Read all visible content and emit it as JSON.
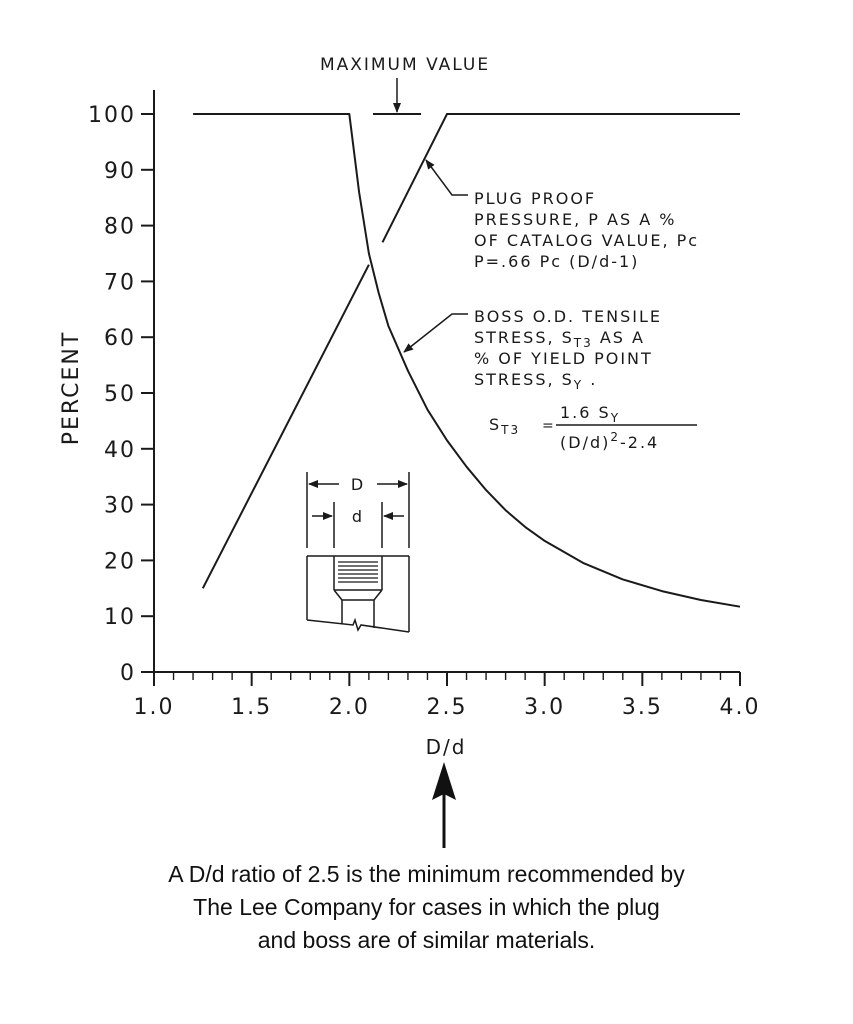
{
  "chart_data": {
    "type": "line",
    "xlabel": "D/d",
    "ylabel": "PERCENT",
    "xlim": [
      1.0,
      4.0
    ],
    "ylim": [
      0,
      100
    ],
    "x_ticks": [
      "1.0",
      "1.5",
      "2.0",
      "2.5",
      "3.0",
      "3.5",
      "4.0"
    ],
    "y_ticks": [
      "0",
      "10",
      "20",
      "30",
      "40",
      "50",
      "60",
      "70",
      "80",
      "90",
      "100"
    ],
    "grid": false,
    "series": [
      {
        "id": "plug",
        "x": [
          1.25,
          2.1,
          2.17,
          2.5,
          4.0
        ],
        "y": [
          15,
          73,
          77,
          100,
          100
        ]
      },
      {
        "id": "boss",
        "x": [
          1.2,
          2.0,
          2.05,
          2.1,
          2.15,
          2.2,
          2.3,
          2.4,
          2.5,
          2.6,
          2.7,
          2.8,
          2.9,
          3.0,
          3.2,
          3.4,
          3.6,
          3.8,
          4.0
        ],
        "y": [
          100,
          100,
          86,
          75,
          68,
          62,
          54,
          47,
          41.5,
          36.8,
          32.6,
          29,
          26,
          23.5,
          19.5,
          16.6,
          14.5,
          12.9,
          11.7
        ]
      }
    ],
    "annotations": {
      "max_value": "MAXIMUM VALUE",
      "plug_lines": [
        "PLUG PROOF",
        "PRESSURE, P AS A %",
        "OF CATALOG VALUE, Pc",
        "P=.66 Pc (D/d-1)"
      ],
      "boss_lines": [
        "BOSS O.D. TENSILE",
        "STRESS, ST3 AS A",
        "% OF YIELD POINT",
        "STRESS, SY ."
      ],
      "formula": {
        "lhs": "ST3",
        "eq": "=",
        "numerator": "1.6 SY",
        "denominator": "(D/d)2-2.4"
      },
      "diagram": {
        "outer_label": "D",
        "inner_label": "d"
      }
    }
  },
  "caption": {
    "lines": [
      "A D/d ratio of 2.5 is the minimum recommended by",
      "The Lee Company for cases in which the plug",
      "and boss are of similar materials."
    ]
  }
}
